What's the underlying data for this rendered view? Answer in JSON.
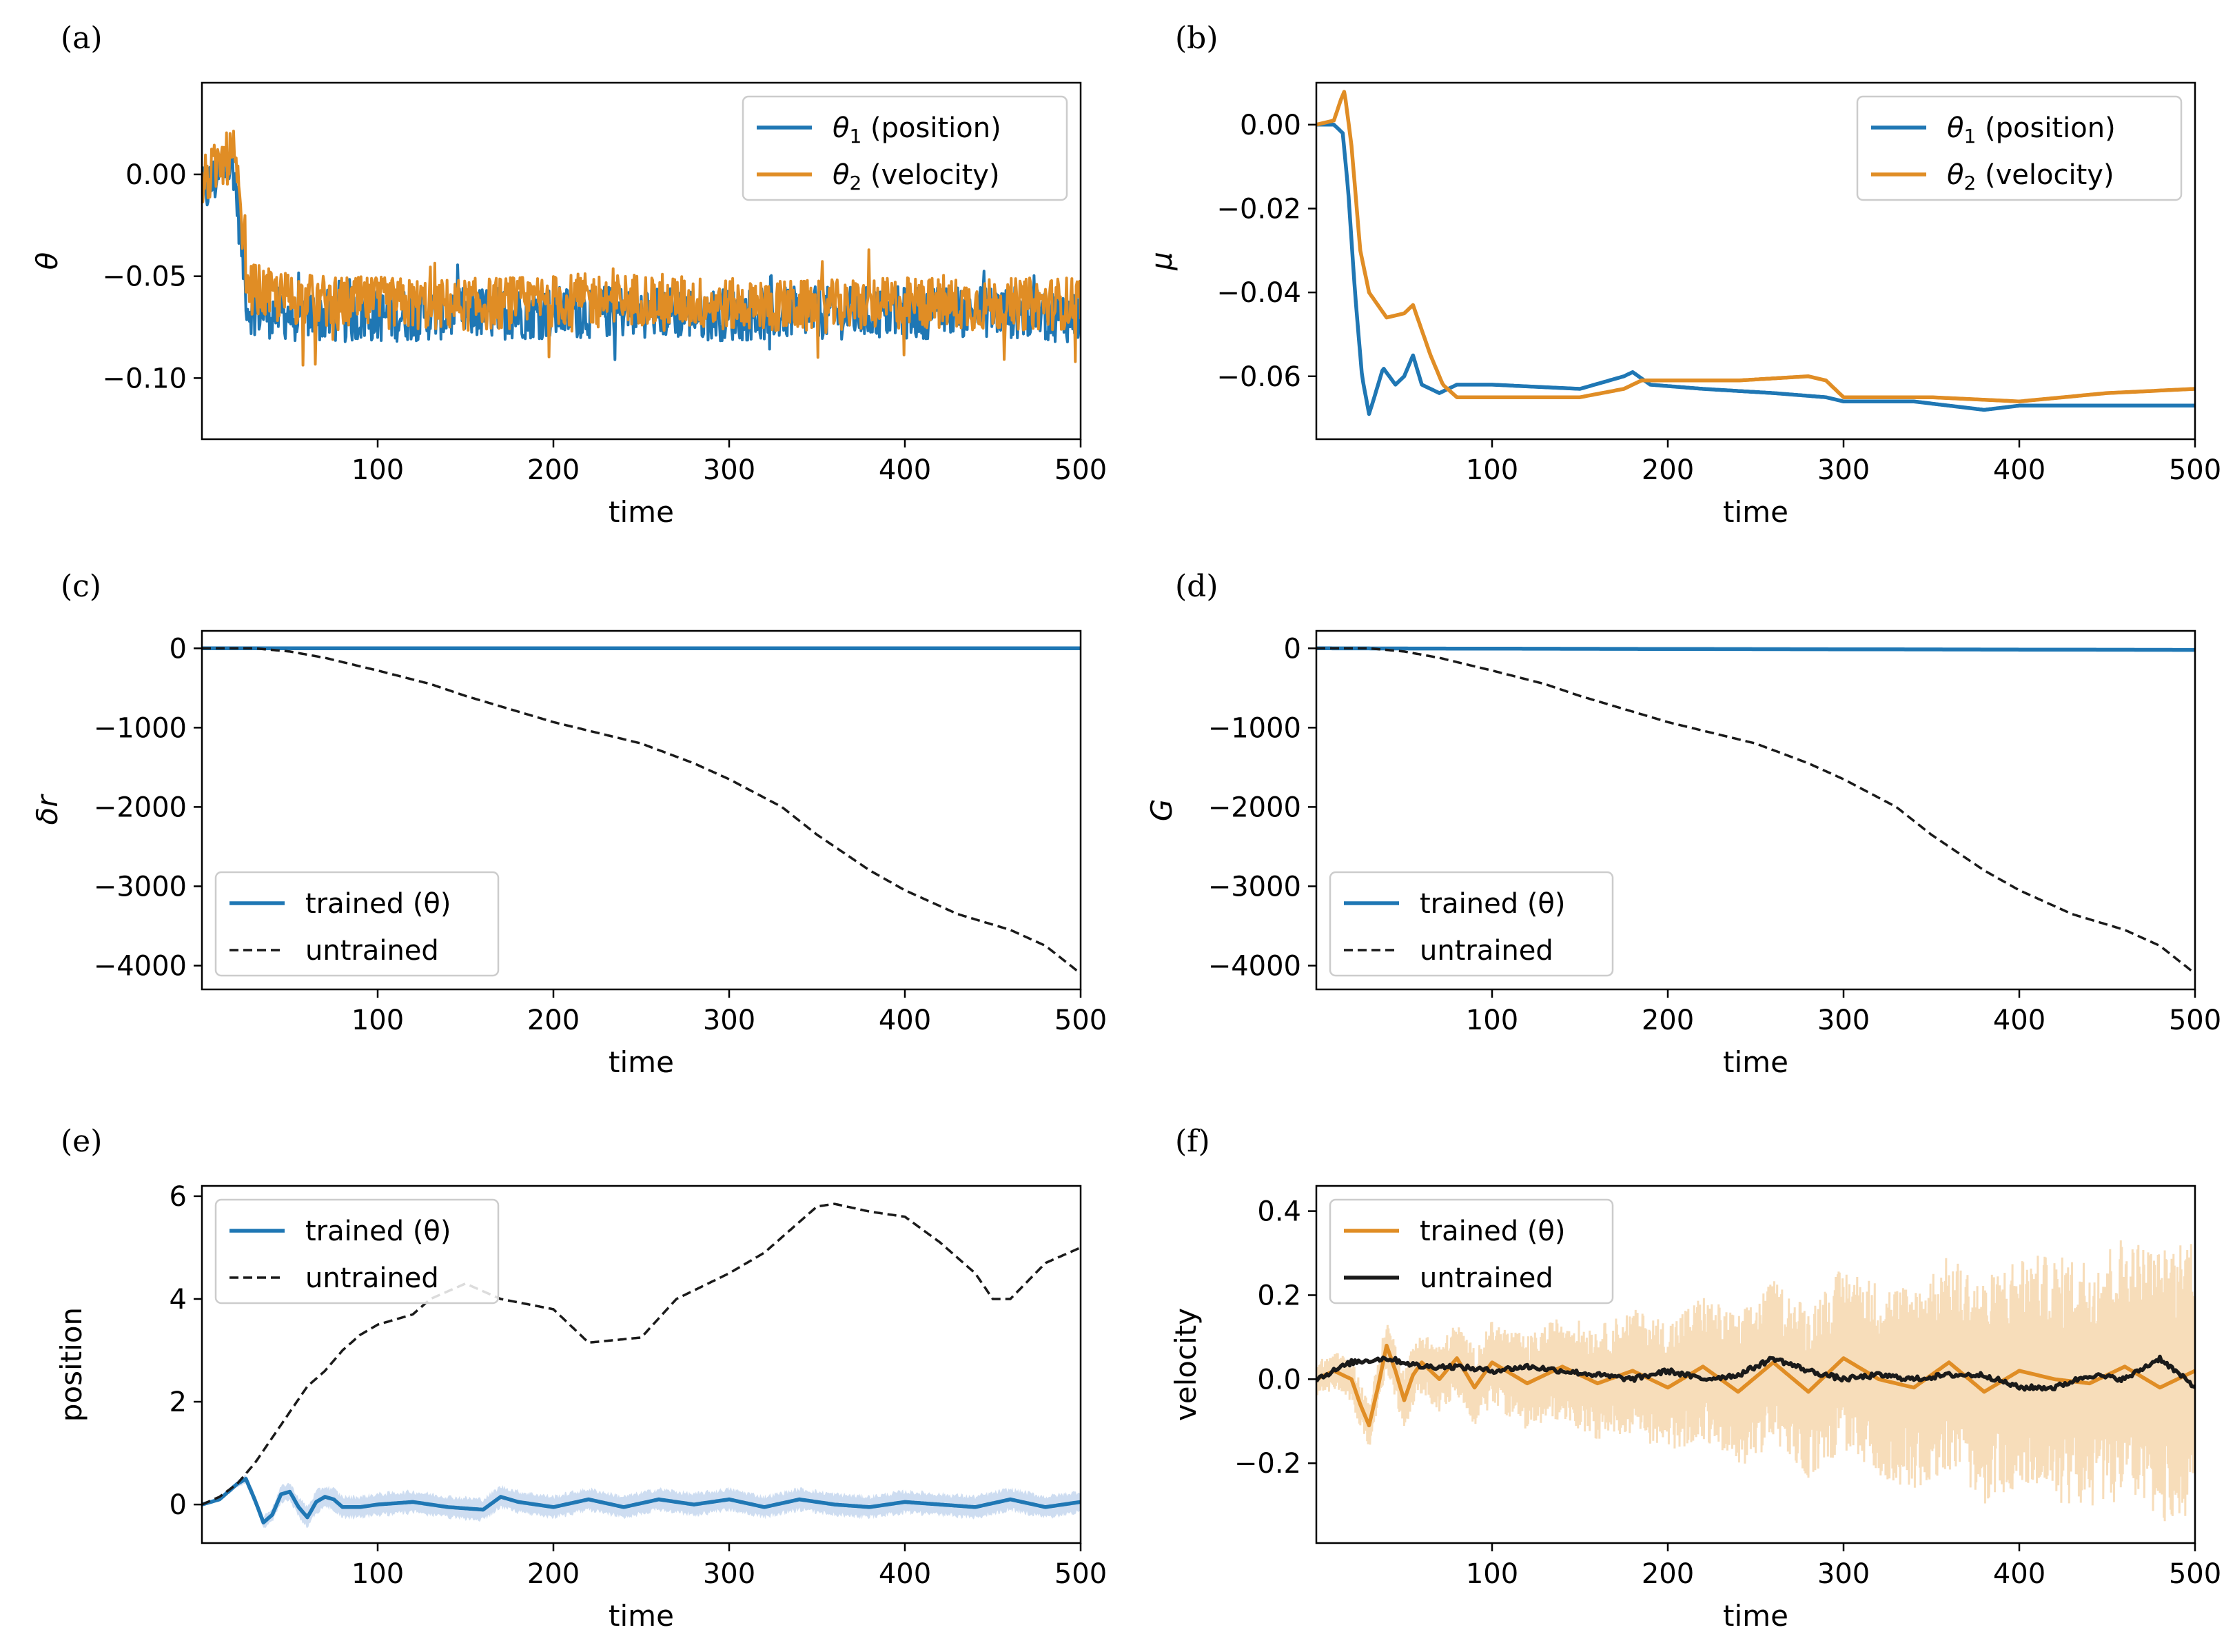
{
  "chart_data": [
    {
      "type": "line",
      "panel_label": "(a)",
      "xlabel": "time",
      "ylabel": "θ",
      "xlim": [
        0,
        500
      ],
      "ylim": [
        -0.13,
        0.045
      ],
      "xticks": [
        100,
        200,
        300,
        400,
        500
      ],
      "yticks": [
        0.0,
        -0.05,
        -0.1
      ],
      "ytick_labels": [
        "0.00",
        "−0.05",
        "−0.10"
      ],
      "legend_position": "top-right",
      "noise": true,
      "series": [
        {
          "name": "θ₁ (position)",
          "sub": "1",
          "base": "θ",
          "rest": " (position)",
          "color": "#1f77b4",
          "style": "solid",
          "x": [
            0,
            10,
            18,
            22,
            26,
            40,
            80,
            150,
            200,
            250,
            300,
            350,
            400,
            450,
            500
          ],
          "y": [
            -0.01,
            0.0,
            0.005,
            -0.03,
            -0.065,
            -0.068,
            -0.07,
            -0.068,
            -0.068,
            -0.067,
            -0.069,
            -0.068,
            -0.068,
            -0.067,
            -0.07
          ],
          "amp": 0.013
        },
        {
          "name": "θ₂ (velocity)",
          "sub": "2",
          "base": "θ",
          "rest": " (velocity)",
          "color": "#e08d25",
          "style": "solid",
          "x": [
            0,
            10,
            18,
            22,
            26,
            40,
            80,
            150,
            200,
            250,
            300,
            350,
            400,
            450,
            500
          ],
          "y": [
            -0.005,
            0.005,
            0.01,
            -0.02,
            -0.055,
            -0.06,
            -0.063,
            -0.064,
            -0.062,
            -0.061,
            -0.064,
            -0.065,
            -0.063,
            -0.064,
            -0.063
          ],
          "amp": 0.013
        }
      ]
    },
    {
      "type": "line",
      "panel_label": "(b)",
      "xlabel": "time",
      "ylabel": "μ",
      "xlim": [
        0,
        500
      ],
      "ylim": [
        -0.075,
        0.01
      ],
      "xticks": [
        100,
        200,
        300,
        400,
        500
      ],
      "yticks": [
        0.0,
        -0.02,
        -0.04,
        -0.06
      ],
      "ytick_labels": [
        "0.00",
        "−0.02",
        "−0.04",
        "−0.06"
      ],
      "legend_position": "top-right",
      "noise": false,
      "series": [
        {
          "name": "θ₁ (position)",
          "sub": "1",
          "base": "θ",
          "rest": " (position)",
          "color": "#1f77b4",
          "style": "solid",
          "x": [
            0,
            10,
            15,
            18,
            22,
            26,
            30,
            33,
            38,
            45,
            50,
            55,
            60,
            70,
            80,
            100,
            150,
            175,
            180,
            190,
            220,
            260,
            290,
            300,
            340,
            380,
            400,
            450,
            500
          ],
          "y": [
            0.0,
            0.0,
            -0.002,
            -0.015,
            -0.04,
            -0.06,
            -0.069,
            -0.065,
            -0.058,
            -0.062,
            -0.06,
            -0.055,
            -0.062,
            -0.064,
            -0.062,
            -0.062,
            -0.063,
            -0.06,
            -0.059,
            -0.062,
            -0.063,
            -0.064,
            -0.065,
            -0.066,
            -0.066,
            -0.068,
            -0.067,
            -0.067,
            -0.067
          ]
        },
        {
          "name": "θ₂ (velocity)",
          "sub": "2",
          "base": "θ",
          "rest": " (velocity)",
          "color": "#e08d25",
          "style": "solid",
          "x": [
            0,
            10,
            14,
            16,
            20,
            25,
            30,
            40,
            50,
            55,
            65,
            72,
            80,
            100,
            150,
            175,
            185,
            200,
            240,
            280,
            290,
            300,
            350,
            400,
            450,
            500
          ],
          "y": [
            0.0,
            0.001,
            0.006,
            0.008,
            -0.005,
            -0.03,
            -0.04,
            -0.046,
            -0.045,
            -0.043,
            -0.055,
            -0.062,
            -0.065,
            -0.065,
            -0.065,
            -0.063,
            -0.061,
            -0.061,
            -0.061,
            -0.06,
            -0.061,
            -0.065,
            -0.065,
            -0.066,
            -0.064,
            -0.063
          ]
        }
      ]
    },
    {
      "type": "line",
      "panel_label": "(c)",
      "xlabel": "time",
      "ylabel": "δr",
      "xlim": [
        0,
        500
      ],
      "ylim": [
        -4300,
        220
      ],
      "xticks": [
        100,
        200,
        300,
        400,
        500
      ],
      "yticks": [
        0,
        -1000,
        -2000,
        -3000,
        -4000
      ],
      "ytick_labels": [
        "0",
        "−1000",
        "−2000",
        "−3000",
        "−4000"
      ],
      "legend_position": "lower-left",
      "noise": false,
      "series": [
        {
          "name": "trained (θ)",
          "color": "#1f77b4",
          "style": "solid",
          "x": [
            0,
            500
          ],
          "y": [
            0,
            0
          ]
        },
        {
          "name": "untrained",
          "color": "#1a1a1a",
          "style": "dashed",
          "x": [
            0,
            30,
            50,
            70,
            100,
            130,
            150,
            200,
            250,
            280,
            300,
            330,
            350,
            380,
            400,
            430,
            460,
            480,
            500
          ],
          "y": [
            0,
            0,
            -40,
            -120,
            -280,
            -450,
            -600,
            -930,
            -1200,
            -1450,
            -1650,
            -2000,
            -2350,
            -2800,
            -3050,
            -3350,
            -3550,
            -3750,
            -4100
          ]
        }
      ]
    },
    {
      "type": "line",
      "panel_label": "(d)",
      "xlabel": "time",
      "ylabel": "G",
      "xlim": [
        0,
        500
      ],
      "ylim": [
        -4300,
        220
      ],
      "xticks": [
        100,
        200,
        300,
        400,
        500
      ],
      "yticks": [
        0,
        -1000,
        -2000,
        -3000,
        -4000
      ],
      "ytick_labels": [
        "0",
        "−1000",
        "−2000",
        "−3000",
        "−4000"
      ],
      "legend_position": "lower-left",
      "noise": false,
      "series": [
        {
          "name": "trained (θ)",
          "color": "#1f77b4",
          "style": "solid",
          "x": [
            0,
            500
          ],
          "y": [
            0,
            -20
          ]
        },
        {
          "name": "untrained",
          "color": "#1a1a1a",
          "style": "dashed",
          "x": [
            0,
            30,
            50,
            70,
            100,
            130,
            150,
            200,
            250,
            280,
            300,
            330,
            350,
            380,
            400,
            430,
            460,
            480,
            500
          ],
          "y": [
            0,
            0,
            -40,
            -120,
            -280,
            -450,
            -600,
            -930,
            -1200,
            -1450,
            -1650,
            -2000,
            -2350,
            -2800,
            -3050,
            -3350,
            -3550,
            -3750,
            -4100
          ]
        }
      ]
    },
    {
      "type": "line",
      "panel_label": "(e)",
      "xlabel": "time",
      "ylabel": "position",
      "xlim": [
        0,
        500
      ],
      "ylim": [
        -0.75,
        6.2
      ],
      "xticks": [
        100,
        200,
        300,
        400,
        500
      ],
      "yticks": [
        0,
        2,
        4,
        6
      ],
      "ytick_labels": [
        "0",
        "2",
        "4",
        "6"
      ],
      "legend_position": "top-left",
      "noise": false,
      "band": {
        "color": "#aec7e8",
        "halfwidth": 0.25
      },
      "series": [
        {
          "name": "trained (θ)",
          "color": "#1f77b4",
          "style": "solid",
          "x": [
            0,
            10,
            20,
            25,
            30,
            35,
            40,
            45,
            50,
            55,
            60,
            65,
            70,
            75,
            80,
            90,
            100,
            120,
            140,
            160,
            170,
            180,
            200,
            220,
            240,
            260,
            280,
            300,
            320,
            340,
            360,
            380,
            400,
            420,
            440,
            460,
            480,
            500
          ],
          "y": [
            0,
            0.1,
            0.4,
            0.5,
            0.1,
            -0.35,
            -0.2,
            0.2,
            0.25,
            -0.05,
            -0.25,
            0.05,
            0.15,
            0.1,
            -0.05,
            -0.05,
            0.0,
            0.05,
            -0.05,
            -0.1,
            0.15,
            0.05,
            -0.05,
            0.1,
            -0.05,
            0.1,
            0.0,
            0.1,
            -0.05,
            0.1,
            0.0,
            -0.05,
            0.05,
            0.0,
            -0.05,
            0.1,
            -0.05,
            0.05
          ]
        },
        {
          "name": "untrained",
          "color": "#1a1a1a",
          "style": "dashed",
          "x": [
            0,
            10,
            20,
            30,
            40,
            50,
            60,
            70,
            80,
            90,
            100,
            120,
            130,
            150,
            170,
            200,
            220,
            250,
            270,
            300,
            320,
            350,
            360,
            380,
            400,
            420,
            440,
            450,
            460,
            480,
            500
          ],
          "y": [
            0,
            0.15,
            0.4,
            0.8,
            1.3,
            1.8,
            2.3,
            2.6,
            3.0,
            3.3,
            3.5,
            3.7,
            4.0,
            4.3,
            4.0,
            3.8,
            3.15,
            3.25,
            4.0,
            4.5,
            4.9,
            5.8,
            5.85,
            5.7,
            5.6,
            5.1,
            4.5,
            4.0,
            4.0,
            4.7,
            5.0
          ]
        }
      ]
    },
    {
      "type": "line",
      "panel_label": "(f)",
      "xlabel": "time",
      "ylabel": "velocity",
      "xlim": [
        0,
        500
      ],
      "ylim": [
        -0.39,
        0.46
      ],
      "xticks": [
        100,
        200,
        300,
        400,
        500
      ],
      "yticks": [
        0.4,
        0.2,
        0.0,
        -0.2
      ],
      "ytick_labels": [
        "0.4",
        "0.2",
        "0.0",
        "−0.2"
      ],
      "legend_position": "top-left",
      "noise": false,
      "band": {
        "color": "#f6d9b3",
        "noisy": true
      },
      "series": [
        {
          "name": "trained (θ)",
          "color": "#e08d25",
          "style": "solid",
          "x": [
            0,
            10,
            20,
            25,
            30,
            35,
            40,
            45,
            50,
            55,
            60,
            70,
            80,
            90,
            100,
            120,
            140,
            160,
            180,
            200,
            220,
            240,
            260,
            280,
            300,
            320,
            340,
            360,
            380,
            400,
            420,
            440,
            460,
            480,
            500
          ],
          "y": [
            0,
            0.02,
            0.0,
            -0.06,
            -0.11,
            -0.02,
            0.08,
            0.02,
            -0.05,
            0.01,
            0.04,
            0.0,
            0.05,
            -0.02,
            0.04,
            -0.01,
            0.03,
            -0.01,
            0.02,
            -0.02,
            0.03,
            -0.03,
            0.04,
            -0.03,
            0.05,
            0.0,
            -0.02,
            0.04,
            -0.03,
            0.02,
            0.0,
            -0.01,
            0.03,
            -0.02,
            0.02
          ]
        },
        {
          "name": "untrained",
          "color": "#1a1a1a",
          "style": "solid",
          "x": [
            0,
            20,
            40,
            60,
            80,
            100,
            120,
            140,
            160,
            180,
            200,
            220,
            240,
            260,
            280,
            300,
            320,
            340,
            360,
            380,
            400,
            420,
            440,
            460,
            480,
            500
          ],
          "y": [
            0,
            0.04,
            0.05,
            0.03,
            0.03,
            0.02,
            0.03,
            0.02,
            0.01,
            0.0,
            0.02,
            0.0,
            0.01,
            0.05,
            0.02,
            0.0,
            0.01,
            0.0,
            0.01,
            0.01,
            -0.02,
            -0.02,
            0.01,
            0.0,
            0.05,
            -0.02
          ]
        }
      ]
    }
  ]
}
